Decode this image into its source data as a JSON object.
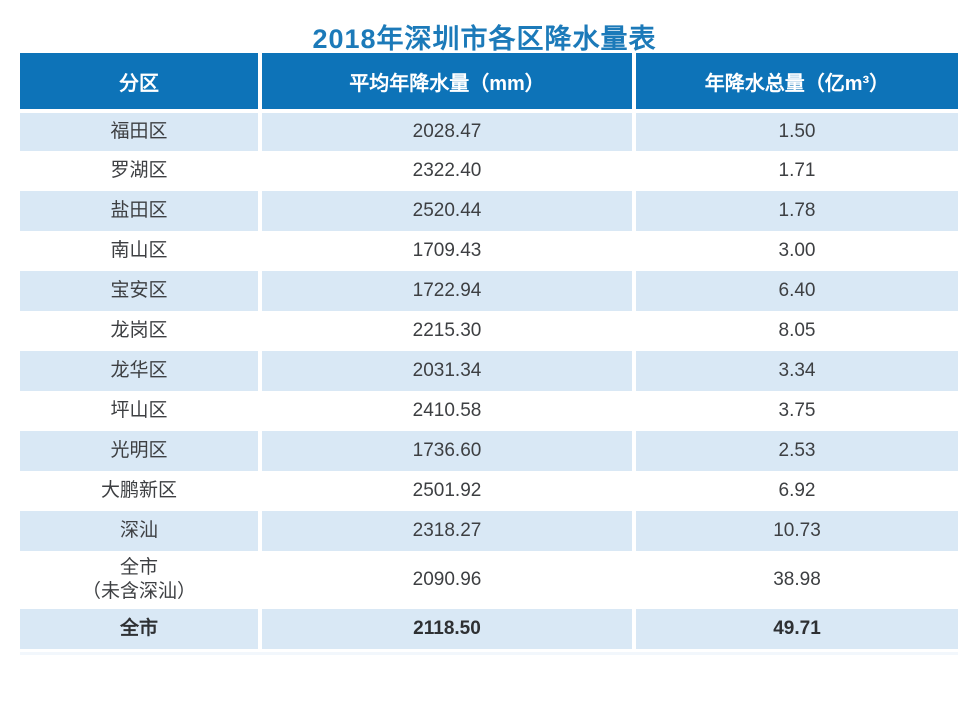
{
  "page": {
    "title": "2018年深圳市各区降水量表"
  },
  "table": {
    "columns": [
      {
        "label": "分区"
      },
      {
        "label": "平均年降水量（mm）"
      },
      {
        "label": "年降水总量（亿m³）"
      }
    ],
    "rows": [
      {
        "district": "福田区",
        "avg": "2028.47",
        "total": "1.50"
      },
      {
        "district": "罗湖区",
        "avg": "2322.40",
        "total": "1.71"
      },
      {
        "district": "盐田区",
        "avg": "2520.44",
        "total": "1.78"
      },
      {
        "district": "南山区",
        "avg": "1709.43",
        "total": "3.00"
      },
      {
        "district": "宝安区",
        "avg": "1722.94",
        "total": "6.40"
      },
      {
        "district": "龙岗区",
        "avg": "2215.30",
        "total": "8.05"
      },
      {
        "district": "龙华区",
        "avg": "2031.34",
        "total": "3.34"
      },
      {
        "district": "坪山区",
        "avg": "2410.58",
        "total": "3.75"
      },
      {
        "district": "光明区",
        "avg": "1736.60",
        "total": "2.53"
      },
      {
        "district": "大鹏新区",
        "avg": "2501.92",
        "total": "6.92"
      },
      {
        "district": "深汕",
        "avg": "2318.27",
        "total": "10.73"
      },
      {
        "district": "全市\n（未含深汕）",
        "avg": "2090.96",
        "total": "38.98"
      },
      {
        "district": "全市",
        "avg": "2118.50",
        "total": "49.71"
      }
    ]
  },
  "colors": {
    "header_bg": "#0d73b8",
    "alt_row_bg": "#d9e8f5",
    "title_text": "#1c7ab9",
    "cell_text": "#3d3f42"
  },
  "chart_data": {
    "type": "table",
    "title": "2018年深圳市各区降水量表",
    "columns": [
      "分区",
      "平均年降水量（mm）",
      "年降水总量（亿m³）"
    ],
    "rows": [
      [
        "福田区",
        2028.47,
        1.5
      ],
      [
        "罗湖区",
        2322.4,
        1.71
      ],
      [
        "盐田区",
        2520.44,
        1.78
      ],
      [
        "南山区",
        1709.43,
        3.0
      ],
      [
        "宝安区",
        1722.94,
        6.4
      ],
      [
        "龙岗区",
        2215.3,
        8.05
      ],
      [
        "龙华区",
        2031.34,
        3.34
      ],
      [
        "坪山区",
        2410.58,
        3.75
      ],
      [
        "光明区",
        1736.6,
        2.53
      ],
      [
        "大鹏新区",
        2501.92,
        6.92
      ],
      [
        "深汕",
        2318.27,
        10.73
      ],
      [
        "全市（未含深汕）",
        2090.96,
        38.98
      ],
      [
        "全市",
        2118.5,
        49.71
      ]
    ]
  }
}
